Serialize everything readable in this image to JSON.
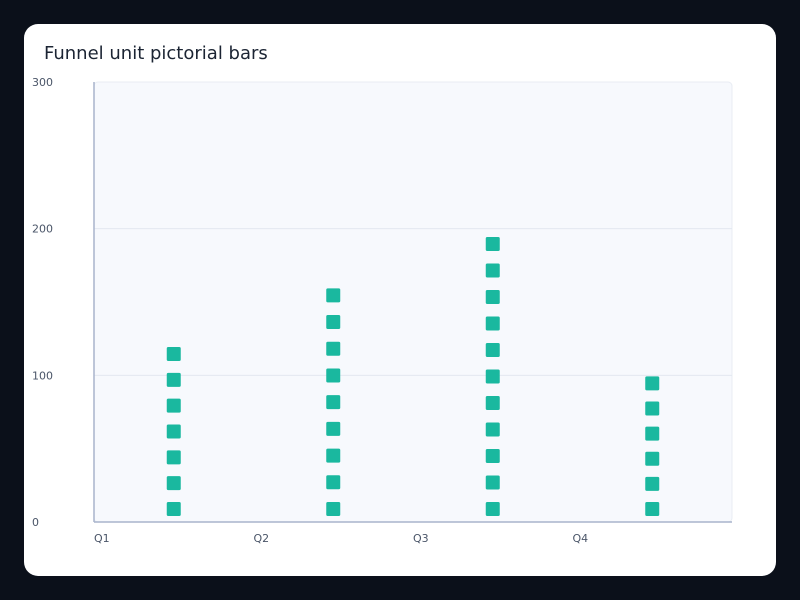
{
  "chart_data": {
    "type": "pictorial-bar",
    "title": "Funnel unit pictorial bars",
    "categories": [
      "Q1",
      "Q2",
      "Q3",
      "Q4"
    ],
    "values": [
      120,
      160,
      195,
      100
    ],
    "symbol_counts": [
      7,
      9,
      11,
      6
    ],
    "ylim": [
      0,
      300
    ],
    "yticks": [
      "0",
      "100",
      "200",
      "300"
    ],
    "grid": true,
    "legend": "none",
    "xlabel": "",
    "ylabel": "",
    "colors": {
      "symbol": "#1ab89f",
      "plot_bg": "#f7f9fd",
      "axis": "#a8b4cc",
      "grid": "#e3e8f0"
    }
  }
}
